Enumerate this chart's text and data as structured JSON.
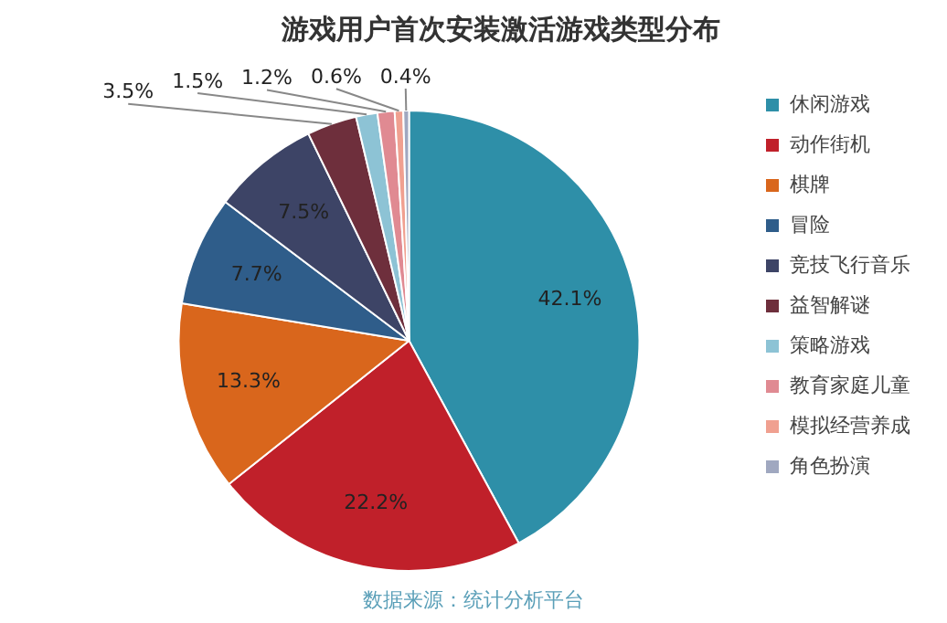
{
  "chart_data": {
    "type": "pie",
    "title": "游戏用户首次安装激活游戏类型分布",
    "categories": [
      "休闲游戏",
      "动作街机",
      "棋牌",
      "冒险",
      "竞技飞行音乐",
      "益智解谜",
      "策略游戏",
      "教育家庭儿童",
      "模拟经营养成",
      "角色扮演"
    ],
    "values": [
      42.1,
      22.2,
      13.3,
      7.7,
      7.5,
      3.5,
      1.5,
      1.2,
      0.6,
      0.4
    ],
    "value_labels": [
      "42.1%",
      "22.2%",
      "13.3%",
      "7.7%",
      "7.5%",
      "3.5%",
      "1.5%",
      "1.2%",
      "0.6%",
      "0.4%"
    ],
    "colors": [
      "#2e8fa8",
      "#c0202a",
      "#d9661c",
      "#2f5d8a",
      "#3d4466",
      "#6e2f3c",
      "#8dc3d5",
      "#e08a92",
      "#f0a090",
      "#a0a8c0"
    ],
    "legend": "right",
    "annotations": [
      "数据来源：统计分析平台"
    ]
  }
}
